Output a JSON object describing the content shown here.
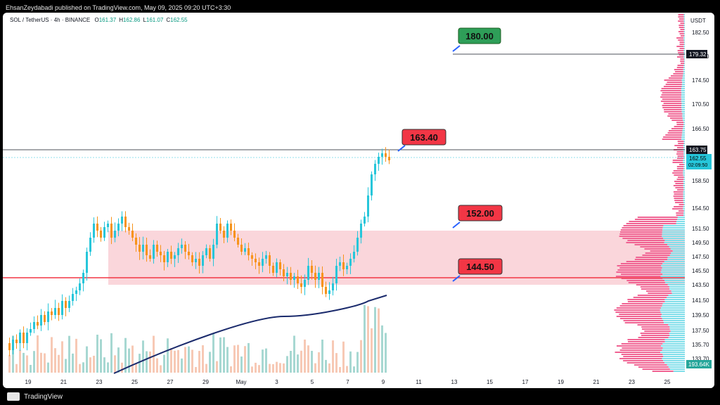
{
  "header": {
    "published_line": "EhsanZeydabadi published on TradingView.com, May 09, 2025 09:20 UTC+3:30"
  },
  "symbol": {
    "title": "SOL / TetherUS · 4h · BINANCE",
    "ohlc": [
      {
        "label": "O",
        "value": "161.37"
      },
      {
        "label": "H",
        "value": "162.86"
      },
      {
        "label": "L",
        "value": "161.07"
      },
      {
        "label": "C",
        "value": "162.55"
      }
    ]
  },
  "footer": {
    "brand": "TradingView"
  },
  "price_axis": {
    "currency": "USDT",
    "ticks": [
      "182.50",
      "178.50",
      "174.50",
      "170.50",
      "166.50",
      "158.50",
      "154.50",
      "151.50",
      "149.50",
      "147.50",
      "145.50",
      "143.50",
      "141.50",
      "139.50",
      "137.50",
      "135.70",
      "133.70"
    ],
    "line_labels": {
      "top_line": "179.32",
      "resistance_line": "163.75",
      "current_price": "162.55",
      "countdown": "02:09:50",
      "volume": "193.64K"
    }
  },
  "time_axis": {
    "ticks": [
      "19",
      "21",
      "23",
      "25",
      "27",
      "29",
      "May",
      "3",
      "5",
      "7",
      "9",
      "11",
      "13",
      "15",
      "17",
      "19",
      "21",
      "23",
      "25"
    ]
  },
  "callouts": [
    {
      "label": "180.00",
      "color": "#2e9e58"
    },
    {
      "label": "163.40",
      "color": "#f23645"
    },
    {
      "label": "152.00",
      "color": "#f23645"
    },
    {
      "label": "144.50",
      "color": "#f23645"
    }
  ],
  "colors": {
    "bull": "#26c6da",
    "bear": "#f7931a",
    "support_line": "#f23645",
    "zone_fill": "#f8c8cf",
    "ma_line": "#1a2a6c",
    "volume_profile_pink": "#f06292",
    "volume_profile_cyan": "#80deea"
  }
}
